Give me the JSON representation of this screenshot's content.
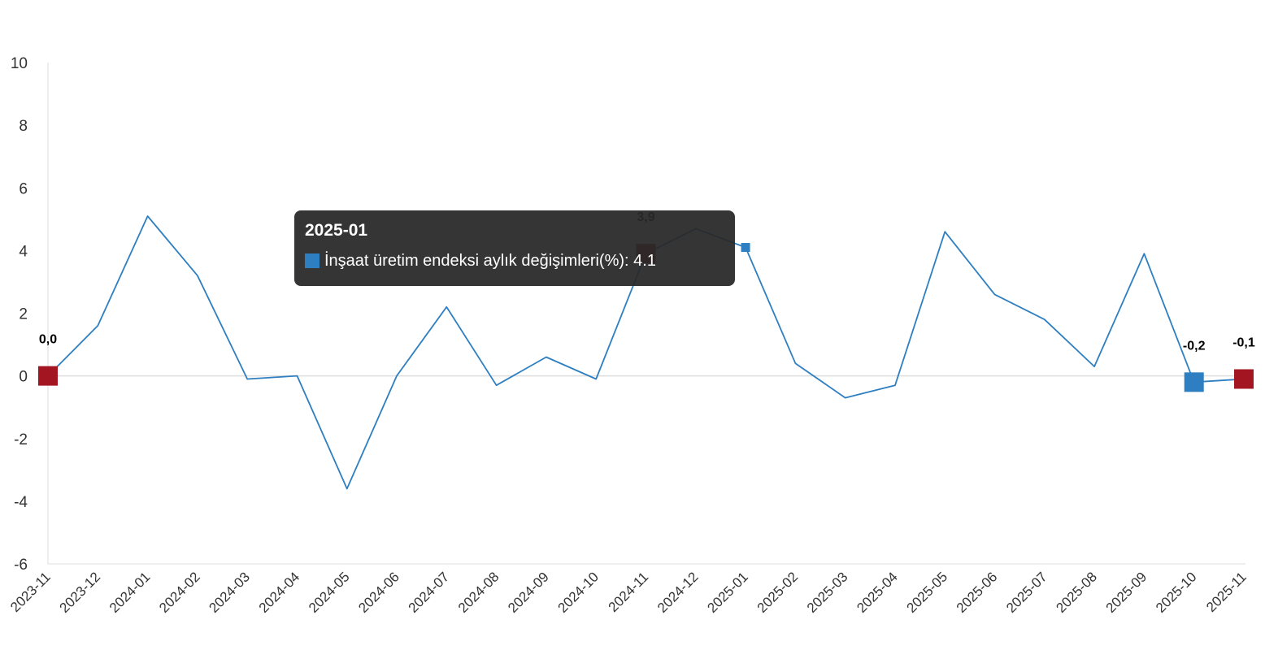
{
  "chart_data": {
    "type": "line",
    "categories": [
      "2023-11",
      "2023-12",
      "2024-01",
      "2024-02",
      "2024-03",
      "2024-04",
      "2024-05",
      "2024-06",
      "2024-07",
      "2024-08",
      "2024-09",
      "2024-10",
      "2024-11",
      "2024-12",
      "2025-01",
      "2025-02",
      "2025-03",
      "2025-04",
      "2025-05",
      "2025-06",
      "2025-07",
      "2025-08",
      "2025-09",
      "2025-10",
      "2025-11"
    ],
    "series": [
      {
        "name": "İnşaat üretim endeksi aylık değişimleri(%)",
        "color": "#2e7fc1",
        "values": [
          0.0,
          1.6,
          5.1,
          3.2,
          -0.1,
          0.0,
          -3.6,
          0.0,
          2.2,
          -0.3,
          0.6,
          -0.1,
          3.9,
          4.7,
          4.1,
          0.4,
          -0.7,
          -0.3,
          4.6,
          2.6,
          1.8,
          0.3,
          3.9,
          -0.2,
          -0.1
        ]
      }
    ],
    "yticks": [
      10,
      8,
      6,
      4,
      2,
      0,
      -2,
      -4,
      -6
    ],
    "ylim": [
      -6,
      10
    ],
    "grid": false,
    "title": "",
    "xlabel": "",
    "ylabel": "",
    "highlight_markers": [
      {
        "category": "2023-11",
        "label": "0,0",
        "color": "#a31621"
      },
      {
        "category": "2024-11",
        "label": "3,9",
        "color": "#a31621"
      },
      {
        "category": "2025-10",
        "label": "-0,2",
        "color": "#2e7fc1"
      },
      {
        "category": "2025-11",
        "label": "-0,1",
        "color": "#a31621"
      }
    ],
    "hovered_point": {
      "category": "2025-01",
      "color": "#2e7fc1"
    },
    "tooltip": {
      "title": "2025-01",
      "label": "İnşaat üretim endeksi aylık değişimleri(%): 4.1"
    }
  }
}
